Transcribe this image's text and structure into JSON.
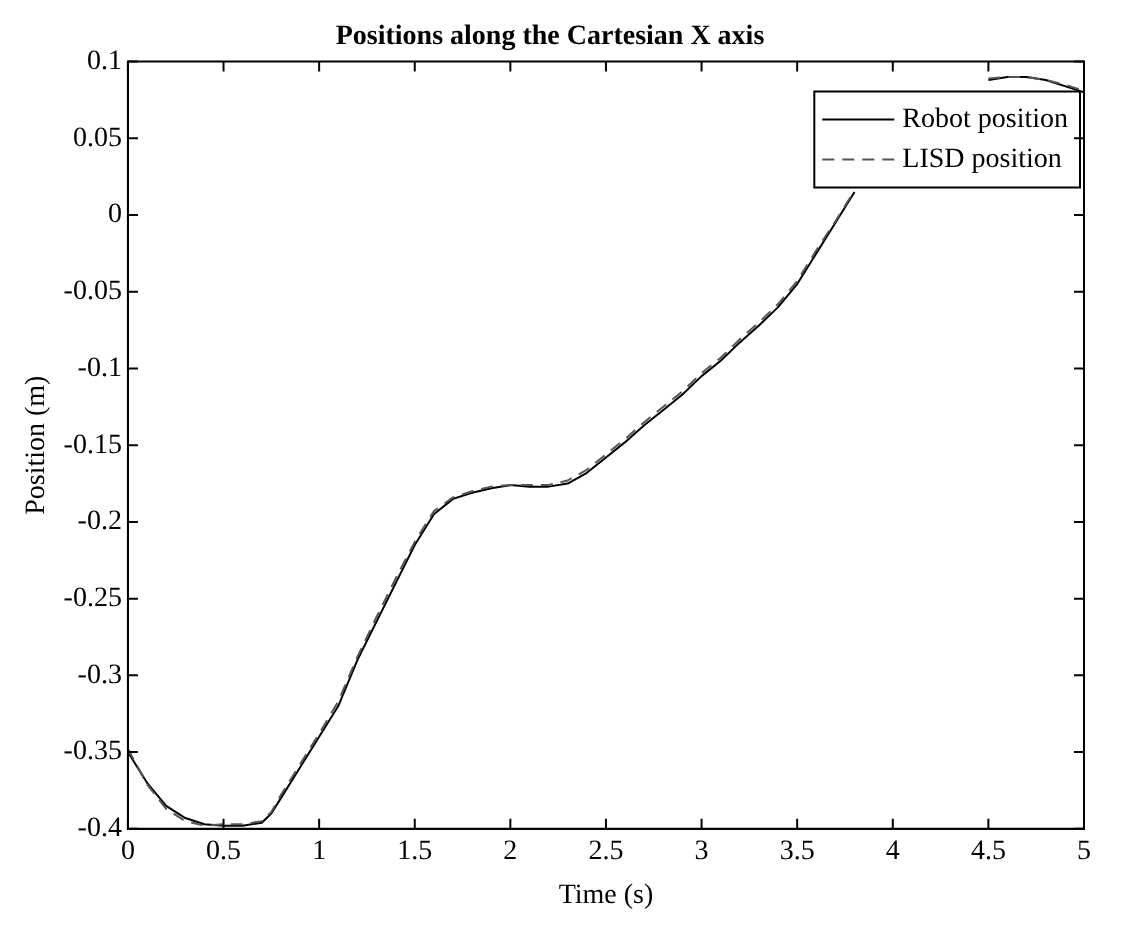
{
  "chart_data": {
    "type": "line",
    "title": "Positions along the Cartesian X axis",
    "xlabel": "Time (s)",
    "ylabel": "Position (m)",
    "x": [
      0,
      0.1,
      0.2,
      0.3,
      0.4,
      0.5,
      0.6,
      0.7,
      0.75,
      0.8,
      0.9,
      1.0,
      1.1,
      1.2,
      1.3,
      1.4,
      1.5,
      1.6,
      1.7,
      1.8,
      1.9,
      2.0,
      2.1,
      2.2,
      2.3,
      2.4,
      2.5,
      2.6,
      2.7,
      2.8,
      2.9,
      3.0,
      3.1,
      3.2,
      3.3,
      3.4,
      3.5,
      3.6,
      3.7,
      3.8,
      3.9,
      4.0,
      4.1,
      4.2,
      4.3,
      4.4,
      4.5,
      4.6,
      4.7,
      4.8,
      4.9,
      5.0
    ],
    "series": [
      {
        "name": "Robot position",
        "color": "#000000",
        "line_style": "solid",
        "values": [
          -0.35,
          -0.37,
          -0.385,
          -0.393,
          -0.397,
          -0.398,
          -0.398,
          -0.396,
          -0.39,
          -0.38,
          -0.36,
          -0.34,
          -0.32,
          -0.29,
          -0.265,
          -0.24,
          -0.215,
          -0.195,
          -0.185,
          -0.181,
          -0.178,
          -0.176,
          -0.177,
          -0.177,
          -0.175,
          -0.168,
          -0.158,
          -0.148,
          -0.137,
          -0.127,
          -0.117,
          -0.105,
          -0.095,
          -0.083,
          -0.072,
          -0.06,
          -0.045,
          -0.025,
          -0.005,
          0.015,
          null,
          null,
          null,
          null,
          null,
          null,
          0.088,
          0.09,
          0.09,
          0.088,
          0.084,
          0.08
        ]
      },
      {
        "name": "LISD position",
        "color": "#555555",
        "line_style": "dashed",
        "values": [
          -0.348,
          -0.371,
          -0.387,
          -0.395,
          -0.398,
          -0.397,
          -0.397,
          -0.395,
          -0.389,
          -0.378,
          -0.358,
          -0.338,
          -0.317,
          -0.288,
          -0.262,
          -0.237,
          -0.213,
          -0.193,
          -0.184,
          -0.18,
          -0.177,
          -0.176,
          -0.176,
          -0.176,
          -0.173,
          -0.166,
          -0.156,
          -0.146,
          -0.135,
          -0.125,
          -0.115,
          -0.103,
          -0.093,
          -0.081,
          -0.07,
          -0.058,
          -0.043,
          -0.023,
          -0.004,
          0.016,
          null,
          null,
          null,
          null,
          null,
          null,
          0.089,
          0.09,
          0.09,
          0.088,
          0.085,
          0.081
        ]
      }
    ],
    "xlim": [
      0,
      5
    ],
    "xticks": [
      0,
      0.5,
      1,
      1.5,
      2,
      2.5,
      3,
      3.5,
      4,
      4.5,
      5
    ],
    "ylim": [
      -0.4,
      0.1
    ],
    "yticks": [
      -0.4,
      -0.35,
      -0.3,
      -0.25,
      -0.2,
      -0.15,
      -0.1,
      -0.05,
      0,
      0.05,
      0.1
    ],
    "grid": false,
    "legend": "top right",
    "marker": "none"
  }
}
